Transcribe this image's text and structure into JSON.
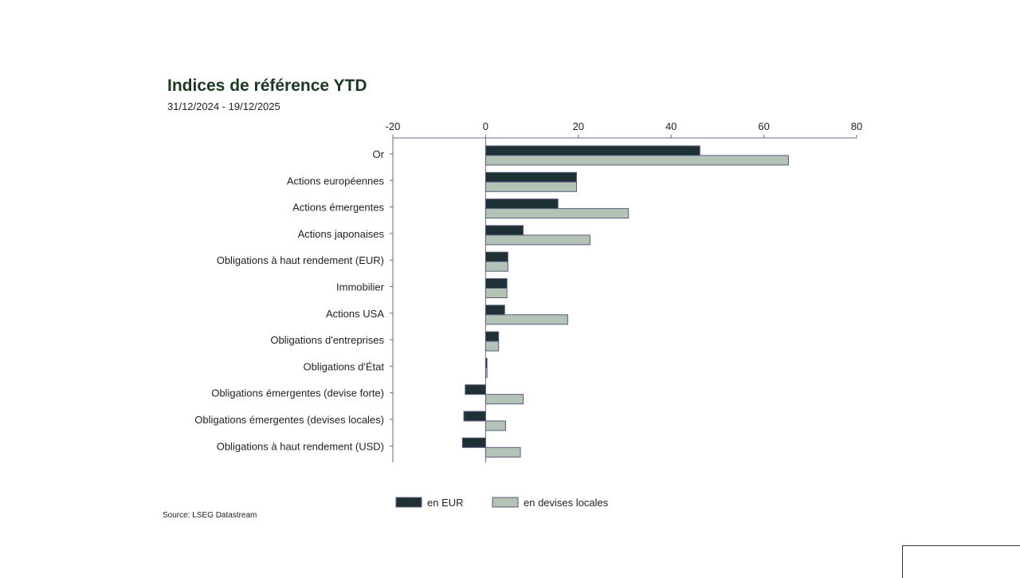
{
  "chart_data": {
    "type": "bar",
    "orientation": "horizontal",
    "title": "Indices de référence YTD",
    "subtitle": "31/12/2024 - 19/12/2025",
    "source": "Source: LSEG Datastream",
    "categories": [
      "Or",
      "Actions européennes",
      "Actions émergentes",
      "Actions japonaises",
      "Obligations à haut rendement (EUR)",
      "Immobilier",
      "Actions USA",
      "Obligations d'entreprises",
      "Obligations d'État",
      "Obligations émergentes (devise forte)",
      "Obligations émergentes (devises locales)",
      "Obligations à haut rendement (USD)"
    ],
    "series": [
      {
        "name": "en EUR",
        "color": "#1e3236",
        "values": [
          46.2,
          19.6,
          15.6,
          8.1,
          4.8,
          4.6,
          4.1,
          2.8,
          0.3,
          -4.4,
          -4.7,
          -5.0
        ]
      },
      {
        "name": "en devises locales",
        "color": "#b3c4b7",
        "values": [
          65.3,
          19.6,
          30.8,
          22.5,
          4.8,
          4.6,
          17.7,
          2.8,
          0.3,
          8.1,
          4.3,
          7.5
        ]
      }
    ],
    "xlim": [
      -20,
      80
    ],
    "xticks": [
      "-20",
      "0",
      "20",
      "40",
      "60",
      "80"
    ],
    "xaxis_position": "top",
    "grid": false,
    "legend_placement": "bottom"
  }
}
